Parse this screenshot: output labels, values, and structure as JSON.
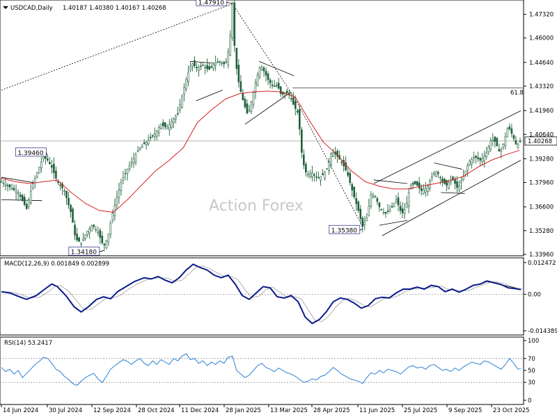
{
  "chart_data": {
    "type": "candlestick",
    "symbol": "USDCAD,Daily",
    "ohlc_header": "1.40187 1.40380 1.40167 1.40268",
    "watermark": "Action Forex",
    "last_price": "1.40268",
    "price_axis": {
      "ylim": [
        1.3396,
        1.4796
      ],
      "ticks": [
        "1.47320",
        "1.46000",
        "1.44640",
        "1.43320",
        "1.41960",
        "1.40640",
        "1.39280",
        "1.37960",
        "1.36600",
        "1.35280",
        "1.33960"
      ]
    },
    "fib_level": {
      "label": "61.8",
      "price": 1.4322
    },
    "swing_labels": [
      {
        "text": "1.47910",
        "price": 1.4791
      },
      {
        "text": "1.39460",
        "price": 1.3946
      },
      {
        "text": "1.34180",
        "price": 1.3418
      },
      {
        "text": "1.35380",
        "price": 1.3538
      }
    ],
    "x_ticks": [
      "14 Jun 2024",
      "30 Jul 2024",
      "12 Sep 2024",
      "28 Oct 2024",
      "11 Dec 2024",
      "28 Jan 2025",
      "13 Mar 2025",
      "28 Apr 2025",
      "11 Jun 2025",
      "25 Jul 2025",
      "9 Sep 2025",
      "23 Oct 2025"
    ],
    "price_path": [
      [
        0,
        1.38
      ],
      [
        12,
        1.377
      ],
      [
        24,
        1.374
      ],
      [
        36,
        1.365
      ],
      [
        44,
        1.378
      ],
      [
        52,
        1.386
      ],
      [
        60,
        1.394
      ],
      [
        66,
        1.392
      ],
      [
        72,
        1.388
      ],
      [
        80,
        1.38
      ],
      [
        90,
        1.375
      ],
      [
        100,
        1.362
      ],
      [
        106,
        1.348
      ],
      [
        114,
        1.346
      ],
      [
        122,
        1.352
      ],
      [
        130,
        1.356
      ],
      [
        138,
        1.352
      ],
      [
        146,
        1.344
      ],
      [
        152,
        1.349
      ],
      [
        158,
        1.361
      ],
      [
        164,
        1.37
      ],
      [
        172,
        1.381
      ],
      [
        180,
        1.387
      ],
      [
        188,
        1.392
      ],
      [
        196,
        1.398
      ],
      [
        204,
        1.401
      ],
      [
        212,
        1.404
      ],
      [
        220,
        1.407
      ],
      [
        228,
        1.412
      ],
      [
        236,
        1.41
      ],
      [
        244,
        1.414
      ],
      [
        252,
        1.418
      ],
      [
        260,
        1.431
      ],
      [
        266,
        1.44
      ],
      [
        272,
        1.446
      ],
      [
        280,
        1.443
      ],
      [
        288,
        1.445
      ],
      [
        296,
        1.442
      ],
      [
        304,
        1.446
      ],
      [
        312,
        1.447
      ],
      [
        320,
        1.445
      ],
      [
        326,
        1.456
      ],
      [
        330,
        1.479
      ],
      [
        334,
        1.448
      ],
      [
        340,
        1.433
      ],
      [
        346,
        1.424
      ],
      [
        352,
        1.417
      ],
      [
        358,
        1.426
      ],
      [
        364,
        1.437
      ],
      [
        370,
        1.445
      ],
      [
        376,
        1.441
      ],
      [
        382,
        1.436
      ],
      [
        388,
        1.433
      ],
      [
        394,
        1.434
      ],
      [
        400,
        1.428
      ],
      [
        406,
        1.43
      ],
      [
        412,
        1.428
      ],
      [
        418,
        1.422
      ],
      [
        424,
        1.418
      ],
      [
        430,
        1.392
      ],
      [
        436,
        1.384
      ],
      [
        444,
        1.385
      ],
      [
        452,
        1.382
      ],
      [
        460,
        1.384
      ],
      [
        466,
        1.388
      ],
      [
        472,
        1.397
      ],
      [
        478,
        1.395
      ],
      [
        486,
        1.391
      ],
      [
        494,
        1.385
      ],
      [
        502,
        1.374
      ],
      [
        510,
        1.364
      ],
      [
        516,
        1.355
      ],
      [
        522,
        1.36
      ],
      [
        528,
        1.373
      ],
      [
        534,
        1.372
      ],
      [
        540,
        1.366
      ],
      [
        548,
        1.362
      ],
      [
        556,
        1.365
      ],
      [
        564,
        1.37
      ],
      [
        572,
        1.362
      ],
      [
        578,
        1.366
      ],
      [
        584,
        1.378
      ],
      [
        592,
        1.379
      ],
      [
        600,
        1.375
      ],
      [
        608,
        1.377
      ],
      [
        616,
        1.384
      ],
      [
        622,
        1.386
      ],
      [
        630,
        1.38
      ],
      [
        636,
        1.378
      ],
      [
        644,
        1.382
      ],
      [
        652,
        1.376
      ],
      [
        660,
        1.383
      ],
      [
        668,
        1.391
      ],
      [
        676,
        1.394
      ],
      [
        684,
        1.392
      ],
      [
        692,
        1.395
      ],
      [
        700,
        1.404
      ],
      [
        706,
        1.402
      ],
      [
        712,
        1.396
      ],
      [
        718,
        1.402
      ],
      [
        724,
        1.411
      ],
      [
        730,
        1.406
      ],
      [
        736,
        1.4
      ],
      [
        742,
        1.4027
      ]
    ],
    "ma_path": [
      [
        0,
        1.382
      ],
      [
        20,
        1.38
      ],
      [
        40,
        1.379
      ],
      [
        60,
        1.38
      ],
      [
        80,
        1.381
      ],
      [
        100,
        1.374
      ],
      [
        120,
        1.368
      ],
      [
        140,
        1.364
      ],
      [
        160,
        1.363
      ],
      [
        180,
        1.37
      ],
      [
        200,
        1.378
      ],
      [
        220,
        1.386
      ],
      [
        240,
        1.392
      ],
      [
        260,
        1.399
      ],
      [
        280,
        1.413
      ],
      [
        300,
        1.42
      ],
      [
        320,
        1.426
      ],
      [
        340,
        1.429
      ],
      [
        360,
        1.43
      ],
      [
        380,
        1.4305
      ],
      [
        400,
        1.43
      ],
      [
        420,
        1.427
      ],
      [
        440,
        1.414
      ],
      [
        460,
        1.402
      ],
      [
        480,
        1.395
      ],
      [
        500,
        1.386
      ],
      [
        520,
        1.38
      ],
      [
        540,
        1.3775
      ],
      [
        560,
        1.376
      ],
      [
        580,
        1.376
      ],
      [
        600,
        1.3775
      ],
      [
        620,
        1.379
      ],
      [
        640,
        1.3805
      ],
      [
        660,
        1.383
      ],
      [
        680,
        1.388
      ],
      [
        700,
        1.392
      ],
      [
        720,
        1.395
      ],
      [
        740,
        1.3975
      ]
    ],
    "macd": {
      "label": "MACD(12,26,9) 0.001849 0.002899",
      "ylim": [
        -0.0155,
        0.0135
      ],
      "ticks": [
        "0.012472",
        "0.00",
        "-0.014389"
      ],
      "tick_values": [
        0.012472,
        0.0,
        -0.014389
      ],
      "main": [
        [
          0,
          0.001
        ],
        [
          12,
          0.0005
        ],
        [
          24,
          -0.0008
        ],
        [
          36,
          -0.002
        ],
        [
          50,
          -0.0005
        ],
        [
          62,
          0.002
        ],
        [
          72,
          0.004
        ],
        [
          80,
          0.003
        ],
        [
          92,
          -0.0005
        ],
        [
          104,
          -0.005
        ],
        [
          114,
          -0.007
        ],
        [
          124,
          -0.005
        ],
        [
          136,
          -0.002
        ],
        [
          146,
          -0.001
        ],
        [
          156,
          -0.0018
        ],
        [
          166,
          0.001
        ],
        [
          178,
          0.003
        ],
        [
          190,
          0.005
        ],
        [
          204,
          0.0065
        ],
        [
          214,
          0.006
        ],
        [
          224,
          0.007
        ],
        [
          234,
          0.0055
        ],
        [
          244,
          0.0045
        ],
        [
          254,
          0.0065
        ],
        [
          264,
          0.0095
        ],
        [
          274,
          0.0118
        ],
        [
          284,
          0.0105
        ],
        [
          294,
          0.0095
        ],
        [
          304,
          0.0075
        ],
        [
          314,
          0.0065
        ],
        [
          324,
          0.0075
        ],
        [
          334,
          0.004
        ],
        [
          344,
          -0.0005
        ],
        [
          354,
          -0.002
        ],
        [
          364,
          0.0005
        ],
        [
          374,
          0.003
        ],
        [
          384,
          0.0025
        ],
        [
          394,
          -0.001
        ],
        [
          404,
          -0.0015
        ],
        [
          414,
          -0.0005
        ],
        [
          424,
          -0.003
        ],
        [
          434,
          -0.009
        ],
        [
          444,
          -0.0115
        ],
        [
          454,
          -0.01
        ],
        [
          464,
          -0.007
        ],
        [
          474,
          -0.003
        ],
        [
          484,
          -0.0015
        ],
        [
          494,
          -0.002
        ],
        [
          504,
          -0.0035
        ],
        [
          514,
          -0.0055
        ],
        [
          524,
          -0.0045
        ],
        [
          534,
          -0.0018
        ],
        [
          544,
          -0.0012
        ],
        [
          554,
          -0.0015
        ],
        [
          564,
          0.0005
        ],
        [
          574,
          0.002
        ],
        [
          584,
          0.002
        ],
        [
          594,
          0.0028
        ],
        [
          604,
          0.002
        ],
        [
          614,
          0.0035
        ],
        [
          624,
          0.003
        ],
        [
          634,
          0.001
        ],
        [
          644,
          0.002
        ],
        [
          654,
          0.0008
        ],
        [
          664,
          0.002
        ],
        [
          674,
          0.0035
        ],
        [
          684,
          0.004
        ],
        [
          694,
          0.0052
        ],
        [
          704,
          0.0045
        ],
        [
          714,
          0.0038
        ],
        [
          724,
          0.0025
        ],
        [
          734,
          0.0022
        ],
        [
          742,
          0.0018
        ]
      ],
      "signal_offset": 0.001
    },
    "rsi": {
      "label": "RSI(14) 53.2417",
      "ylim": [
        0,
        100
      ],
      "ticks": [
        "100",
        "70",
        "50",
        "30",
        "0"
      ],
      "tick_values": [
        100,
        70,
        50,
        30,
        0
      ],
      "values": [
        [
          0,
          55
        ],
        [
          6,
          48
        ],
        [
          12,
          52
        ],
        [
          18,
          44
        ],
        [
          24,
          50
        ],
        [
          30,
          38
        ],
        [
          36,
          45
        ],
        [
          42,
          52
        ],
        [
          48,
          60
        ],
        [
          54,
          65
        ],
        [
          60,
          72
        ],
        [
          66,
          70
        ],
        [
          72,
          62
        ],
        [
          78,
          52
        ],
        [
          84,
          48
        ],
        [
          90,
          40
        ],
        [
          96,
          35
        ],
        [
          102,
          28
        ],
        [
          108,
          25
        ],
        [
          114,
          32
        ],
        [
          120,
          38
        ],
        [
          126,
          42
        ],
        [
          132,
          45
        ],
        [
          138,
          36
        ],
        [
          144,
          30
        ],
        [
          150,
          40
        ],
        [
          156,
          52
        ],
        [
          162,
          58
        ],
        [
          168,
          63
        ],
        [
          174,
          68
        ],
        [
          180,
          65
        ],
        [
          186,
          60
        ],
        [
          192,
          66
        ],
        [
          198,
          70
        ],
        [
          204,
          62
        ],
        [
          210,
          58
        ],
        [
          216,
          66
        ],
        [
          222,
          60
        ],
        [
          228,
          68
        ],
        [
          234,
          64
        ],
        [
          240,
          60
        ],
        [
          246,
          70
        ],
        [
          252,
          66
        ],
        [
          258,
          74
        ],
        [
          264,
          78
        ],
        [
          270,
          68
        ],
        [
          276,
          70
        ],
        [
          282,
          62
        ],
        [
          288,
          66
        ],
        [
          294,
          58
        ],
        [
          300,
          64
        ],
        [
          306,
          60
        ],
        [
          312,
          66
        ],
        [
          318,
          62
        ],
        [
          324,
          72
        ],
        [
          330,
          74
        ],
        [
          336,
          50
        ],
        [
          342,
          44
        ],
        [
          348,
          38
        ],
        [
          354,
          42
        ],
        [
          360,
          50
        ],
        [
          366,
          58
        ],
        [
          372,
          62
        ],
        [
          378,
          55
        ],
        [
          384,
          52
        ],
        [
          390,
          48
        ],
        [
          396,
          54
        ],
        [
          402,
          50
        ],
        [
          408,
          46
        ],
        [
          414,
          44
        ],
        [
          420,
          40
        ],
        [
          426,
          35
        ],
        [
          432,
          30
        ],
        [
          438,
          32
        ],
        [
          444,
          36
        ],
        [
          450,
          34
        ],
        [
          456,
          40
        ],
        [
          462,
          42
        ],
        [
          468,
          48
        ],
        [
          474,
          55
        ],
        [
          480,
          50
        ],
        [
          486,
          44
        ],
        [
          492,
          40
        ],
        [
          498,
          36
        ],
        [
          504,
          34
        ],
        [
          510,
          32
        ],
        [
          516,
          28
        ],
        [
          522,
          38
        ],
        [
          528,
          46
        ],
        [
          534,
          44
        ],
        [
          540,
          50
        ],
        [
          546,
          46
        ],
        [
          552,
          52
        ],
        [
          558,
          50
        ],
        [
          564,
          48
        ],
        [
          570,
          44
        ],
        [
          576,
          50
        ],
        [
          582,
          56
        ],
        [
          588,
          58
        ],
        [
          594,
          54
        ],
        [
          600,
          56
        ],
        [
          606,
          52
        ],
        [
          612,
          58
        ],
        [
          618,
          60
        ],
        [
          624,
          55
        ],
        [
          630,
          50
        ],
        [
          636,
          52
        ],
        [
          642,
          48
        ],
        [
          648,
          54
        ],
        [
          654,
          50
        ],
        [
          660,
          56
        ],
        [
          666,
          60
        ],
        [
          672,
          64
        ],
        [
          678,
          62
        ],
        [
          684,
          60
        ],
        [
          690,
          66
        ],
        [
          696,
          64
        ],
        [
          702,
          60
        ],
        [
          708,
          56
        ],
        [
          714,
          52
        ],
        [
          720,
          60
        ],
        [
          726,
          70
        ],
        [
          732,
          62
        ],
        [
          738,
          52
        ],
        [
          742,
          53.2
        ]
      ]
    }
  }
}
